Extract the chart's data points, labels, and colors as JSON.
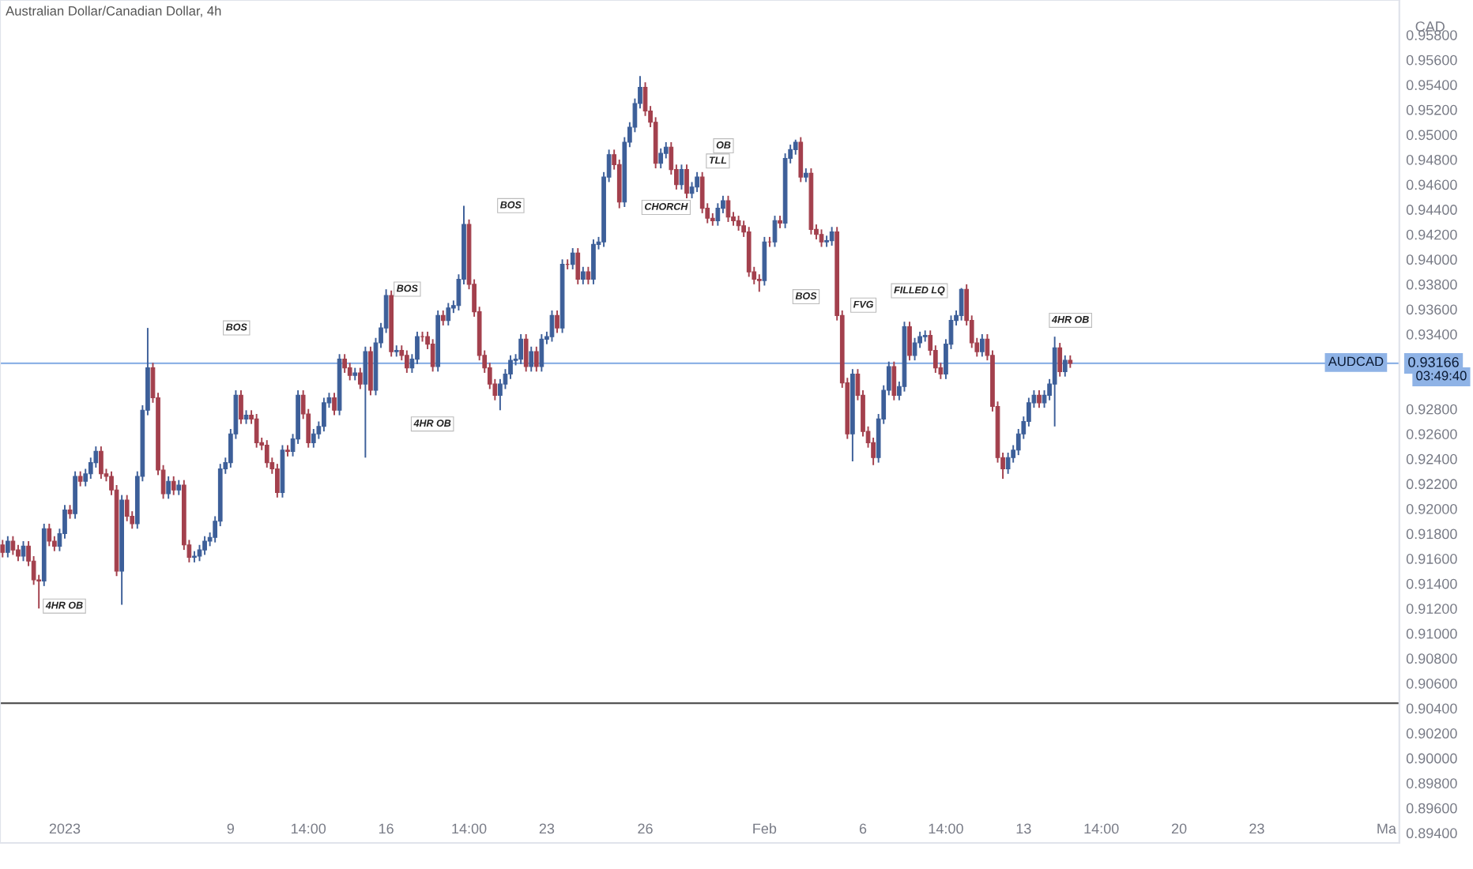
{
  "chart_data": {
    "type": "candlestick",
    "title": "Australian Dollar/Canadian Dollar, 4h",
    "ylabel": "CAD",
    "categories": [
      null,
      null,
      null,
      null,
      null,
      null,
      null,
      null,
      null,
      null,
      null,
      null,
      "2023",
      null,
      null,
      null,
      null,
      null,
      null,
      null,
      null,
      null,
      null,
      null,
      null,
      null,
      null,
      null,
      null,
      null,
      null,
      null,
      null,
      null,
      null,
      null,
      null,
      null,
      null,
      null,
      null,
      null,
      null,
      null,
      "9",
      null,
      null,
      null,
      null,
      null,
      null,
      null,
      null,
      null,
      null,
      null,
      null,
      null,
      null,
      "14:00",
      null,
      null,
      null,
      null,
      null,
      null,
      null,
      null,
      null,
      null,
      null,
      null,
      null,
      null,
      "16",
      null,
      null,
      null,
      null,
      null,
      null,
      null,
      null,
      null,
      null,
      null,
      null,
      null,
      null,
      null,
      "14:00",
      null,
      null,
      null,
      null,
      null,
      null,
      null,
      null,
      null,
      null,
      null,
      null,
      null,
      null,
      "23",
      null,
      null,
      null,
      null,
      null,
      null,
      null,
      null,
      null,
      null,
      null,
      null,
      null,
      null,
      null,
      null,
      null,
      null,
      "26",
      null,
      null,
      null,
      null,
      null,
      null,
      null,
      null,
      null,
      null,
      null,
      null,
      null,
      null,
      null,
      null,
      null,
      null,
      null,
      null,
      null,
      null,
      "Feb",
      null,
      null,
      null,
      null,
      null,
      null,
      null,
      null,
      null,
      null,
      null,
      null,
      null,
      null,
      null,
      null,
      null,
      null,
      "6",
      null,
      null,
      null,
      null,
      null,
      null,
      null,
      null,
      null,
      null,
      null,
      null,
      null,
      null,
      null,
      "14:00",
      null,
      null,
      null,
      null,
      null,
      null,
      null,
      null,
      null,
      null,
      null,
      null,
      null,
      null,
      "13",
      null,
      null,
      null,
      null,
      null,
      null,
      null,
      null,
      null,
      null,
      null,
      null,
      null,
      null,
      "14:00",
      null,
      null,
      null,
      null,
      null,
      null,
      null,
      null,
      null,
      null,
      null,
      null,
      null,
      null,
      "20",
      null,
      null,
      null,
      null,
      null,
      null,
      null,
      null,
      null,
      null,
      null,
      null,
      null,
      null,
      "23",
      null,
      null,
      null,
      null,
      null,
      null,
      null,
      null,
      null,
      null,
      null,
      null,
      null,
      null,
      null,
      null,
      null,
      null,
      null,
      null,
      null,
      null,
      null,
      null,
      "Ma",
      null,
      null
    ],
    "ohlc": [
      [
        0.9171,
        0.9175,
        0.9161,
        0.9165
      ],
      [
        0.9165,
        0.9178,
        0.9161,
        0.9174
      ],
      [
        0.9174,
        0.9178,
        0.9163,
        0.9167
      ],
      [
        0.9167,
        0.9171,
        0.9158,
        0.9162
      ],
      [
        0.9162,
        0.9174,
        0.9158,
        0.917
      ],
      [
        0.917,
        0.9174,
        0.9154,
        0.9158
      ],
      [
        0.9158,
        0.9162,
        0.9139,
        0.9143
      ],
      [
        0.9143,
        0.9147,
        0.912,
        0.9142
      ],
      [
        0.9142,
        0.9188,
        0.9138,
        0.9184
      ],
      [
        0.9184,
        0.9188,
        0.917,
        0.9174
      ],
      [
        0.9174,
        0.9178,
        0.9166,
        0.917
      ],
      [
        0.917,
        0.9184,
        0.9166,
        0.918
      ],
      [
        0.918,
        0.9203,
        0.9176,
        0.9199
      ],
      [
        0.9199,
        0.9203,
        0.9192,
        0.9196
      ],
      [
        0.9196,
        0.923,
        0.9192,
        0.9226
      ],
      [
        0.9226,
        0.923,
        0.9218,
        0.9222
      ],
      [
        0.9222,
        0.9232,
        0.9218,
        0.9228
      ],
      [
        0.9228,
        0.9241,
        0.9224,
        0.9237
      ],
      [
        0.9237,
        0.925,
        0.9233,
        0.9246
      ],
      [
        0.9246,
        0.925,
        0.9224,
        0.9228
      ],
      [
        0.9228,
        0.9232,
        0.9222,
        0.9226
      ],
      [
        0.9226,
        0.923,
        0.9211,
        0.9215
      ],
      [
        0.9215,
        0.9219,
        0.9146,
        0.915
      ],
      [
        0.915,
        0.9211,
        0.9123,
        0.9207
      ],
      [
        0.9207,
        0.9211,
        0.919,
        0.9194
      ],
      [
        0.9194,
        0.9198,
        0.9184,
        0.9188
      ],
      [
        0.9188,
        0.923,
        0.9184,
        0.9226
      ],
      [
        0.9226,
        0.9283,
        0.9222,
        0.9279
      ],
      [
        0.9279,
        0.9345,
        0.9275,
        0.9313
      ],
      [
        0.9313,
        0.9317,
        0.9285,
        0.9289
      ],
      [
        0.9289,
        0.9293,
        0.9227,
        0.9231
      ],
      [
        0.9231,
        0.9235,
        0.9208,
        0.9212
      ],
      [
        0.9212,
        0.9226,
        0.9208,
        0.9222
      ],
      [
        0.9222,
        0.9226,
        0.9211,
        0.9215
      ],
      [
        0.9215,
        0.9223,
        0.9211,
        0.9219
      ],
      [
        0.9219,
        0.9223,
        0.9167,
        0.9171
      ],
      [
        0.9171,
        0.9175,
        0.9157,
        0.9161
      ],
      [
        0.9161,
        0.9166,
        0.9157,
        0.9162
      ],
      [
        0.9162,
        0.9171,
        0.9158,
        0.9167
      ],
      [
        0.9167,
        0.9178,
        0.9163,
        0.9174
      ],
      [
        0.9174,
        0.9181,
        0.917,
        0.9177
      ],
      [
        0.9177,
        0.9194,
        0.9173,
        0.919
      ],
      [
        0.919,
        0.9236,
        0.9186,
        0.9232
      ],
      [
        0.9232,
        0.9241,
        0.9228,
        0.9237
      ],
      [
        0.9237,
        0.9264,
        0.9233,
        0.926
      ],
      [
        0.926,
        0.9295,
        0.9256,
        0.9291
      ],
      [
        0.9291,
        0.9295,
        0.9268,
        0.9272
      ],
      [
        0.9272,
        0.9279,
        0.9268,
        0.9275
      ],
      [
        0.9275,
        0.9279,
        0.9268,
        0.9272
      ],
      [
        0.9272,
        0.9276,
        0.9249,
        0.9253
      ],
      [
        0.9253,
        0.9257,
        0.9247,
        0.9251
      ],
      [
        0.9251,
        0.9255,
        0.9233,
        0.9237
      ],
      [
        0.9237,
        0.9241,
        0.9228,
        0.9232
      ],
      [
        0.9232,
        0.9236,
        0.9209,
        0.9213
      ],
      [
        0.9213,
        0.9251,
        0.9209,
        0.9247
      ],
      [
        0.9247,
        0.9251,
        0.9242,
        0.9246
      ],
      [
        0.9246,
        0.926,
        0.9242,
        0.9256
      ],
      [
        0.9256,
        0.9295,
        0.9252,
        0.9291
      ],
      [
        0.9291,
        0.9295,
        0.9272,
        0.9276
      ],
      [
        0.9276,
        0.928,
        0.9249,
        0.9253
      ],
      [
        0.9253,
        0.9264,
        0.9249,
        0.926
      ],
      [
        0.926,
        0.927,
        0.9256,
        0.9266
      ],
      [
        0.9266,
        0.9289,
        0.9262,
        0.9285
      ],
      [
        0.9285,
        0.9293,
        0.9281,
        0.9289
      ],
      [
        0.9289,
        0.9293,
        0.9275,
        0.9279
      ],
      [
        0.9279,
        0.9324,
        0.9275,
        0.932
      ],
      [
        0.932,
        0.9324,
        0.9309,
        0.9313
      ],
      [
        0.9313,
        0.9317,
        0.9303,
        0.9307
      ],
      [
        0.9307,
        0.9313,
        0.9303,
        0.9309
      ],
      [
        0.9309,
        0.9313,
        0.9296,
        0.93
      ],
      [
        0.93,
        0.933,
        0.9241,
        0.9326
      ],
      [
        0.9326,
        0.933,
        0.9291,
        0.9295
      ],
      [
        0.9295,
        0.9337,
        0.9291,
        0.9333
      ],
      [
        0.9333,
        0.9349,
        0.9329,
        0.9345
      ],
      [
        0.9345,
        0.9376,
        0.9341,
        0.9371
      ],
      [
        0.9371,
        0.9375,
        0.9322,
        0.9326
      ],
      [
        0.9326,
        0.9331,
        0.9322,
        0.9327
      ],
      [
        0.9327,
        0.9331,
        0.9319,
        0.9323
      ],
      [
        0.9323,
        0.9327,
        0.9309,
        0.9313
      ],
      [
        0.9313,
        0.9324,
        0.9309,
        0.932
      ],
      [
        0.932,
        0.9342,
        0.9316,
        0.9338
      ],
      [
        0.9338,
        0.9342,
        0.9334,
        0.9338
      ],
      [
        0.9338,
        0.9342,
        0.9328,
        0.9332
      ],
      [
        0.9332,
        0.9336,
        0.931,
        0.9314
      ],
      [
        0.9314,
        0.9359,
        0.931,
        0.9355
      ],
      [
        0.9355,
        0.9359,
        0.9347,
        0.9351
      ],
      [
        0.9351,
        0.9365,
        0.9347,
        0.9361
      ],
      [
        0.9361,
        0.9367,
        0.9357,
        0.9363
      ],
      [
        0.9363,
        0.9388,
        0.9359,
        0.9384
      ],
      [
        0.9384,
        0.9443,
        0.938,
        0.9428
      ],
      [
        0.9428,
        0.9432,
        0.9376,
        0.938
      ],
      [
        0.938,
        0.9384,
        0.9354,
        0.9358
      ],
      [
        0.9358,
        0.9362,
        0.9319,
        0.9323
      ],
      [
        0.9323,
        0.9327,
        0.9309,
        0.9313
      ],
      [
        0.9313,
        0.9317,
        0.9296,
        0.93
      ],
      [
        0.93,
        0.9304,
        0.9287,
        0.9291
      ],
      [
        0.9291,
        0.9304,
        0.9279,
        0.93
      ],
      [
        0.93,
        0.9312,
        0.9296,
        0.9308
      ],
      [
        0.9308,
        0.9323,
        0.9304,
        0.9319
      ],
      [
        0.9319,
        0.9324,
        0.9315,
        0.932
      ],
      [
        0.932,
        0.934,
        0.9316,
        0.9336
      ],
      [
        0.9336,
        0.934,
        0.931,
        0.9314
      ],
      [
        0.9314,
        0.933,
        0.931,
        0.9326
      ],
      [
        0.9326,
        0.933,
        0.931,
        0.9314
      ],
      [
        0.9314,
        0.934,
        0.931,
        0.9336
      ],
      [
        0.9336,
        0.9342,
        0.9332,
        0.9338
      ],
      [
        0.9338,
        0.9359,
        0.9334,
        0.9355
      ],
      [
        0.9355,
        0.9359,
        0.9341,
        0.9345
      ],
      [
        0.9345,
        0.94,
        0.9341,
        0.9396
      ],
      [
        0.9396,
        0.94,
        0.9392,
        0.9396
      ],
      [
        0.9396,
        0.9409,
        0.9392,
        0.9405
      ],
      [
        0.9405,
        0.9409,
        0.938,
        0.9384
      ],
      [
        0.9384,
        0.9394,
        0.938,
        0.939
      ],
      [
        0.939,
        0.9394,
        0.938,
        0.9384
      ],
      [
        0.9384,
        0.9416,
        0.938,
        0.9412
      ],
      [
        0.9412,
        0.9418,
        0.9408,
        0.9414
      ],
      [
        0.9414,
        0.947,
        0.941,
        0.9466
      ],
      [
        0.9466,
        0.9488,
        0.9462,
        0.9484
      ],
      [
        0.9484,
        0.9488,
        0.9472,
        0.9476
      ],
      [
        0.9476,
        0.948,
        0.9441,
        0.9446
      ],
      [
        0.9446,
        0.9498,
        0.9442,
        0.9494
      ],
      [
        0.9494,
        0.951,
        0.949,
        0.9506
      ],
      [
        0.9506,
        0.9529,
        0.9502,
        0.9525
      ],
      [
        0.9525,
        0.9547,
        0.9521,
        0.9538
      ],
      [
        0.9538,
        0.9542,
        0.9515,
        0.9519
      ],
      [
        0.9519,
        0.9523,
        0.9506,
        0.951
      ],
      [
        0.951,
        0.9514,
        0.9473,
        0.9477
      ],
      [
        0.9477,
        0.9489,
        0.9473,
        0.9485
      ],
      [
        0.9485,
        0.9494,
        0.9481,
        0.949
      ],
      [
        0.949,
        0.9494,
        0.9468,
        0.9472
      ],
      [
        0.9472,
        0.9476,
        0.9456,
        0.946
      ],
      [
        0.946,
        0.9476,
        0.9456,
        0.9472
      ],
      [
        0.9472,
        0.9476,
        0.9449,
        0.9453
      ],
      [
        0.9453,
        0.9462,
        0.9449,
        0.9458
      ],
      [
        0.9458,
        0.947,
        0.9454,
        0.9466
      ],
      [
        0.9466,
        0.947,
        0.9437,
        0.9441
      ],
      [
        0.9441,
        0.9445,
        0.9429,
        0.9433
      ],
      [
        0.9433,
        0.9437,
        0.9427,
        0.9431
      ],
      [
        0.9431,
        0.9445,
        0.9427,
        0.9441
      ],
      [
        0.9441,
        0.9451,
        0.9437,
        0.9447
      ],
      [
        0.9447,
        0.9451,
        0.943,
        0.9434
      ],
      [
        0.9434,
        0.9438,
        0.9427,
        0.9431
      ],
      [
        0.9431,
        0.9435,
        0.9423,
        0.9427
      ],
      [
        0.9427,
        0.9431,
        0.9418,
        0.9422
      ],
      [
        0.9422,
        0.9426,
        0.9386,
        0.939
      ],
      [
        0.939,
        0.9394,
        0.938,
        0.9384
      ],
      [
        0.9384,
        0.9388,
        0.9374,
        0.9383
      ],
      [
        0.9383,
        0.9418,
        0.9379,
        0.9414
      ],
      [
        0.9414,
        0.9418,
        0.941,
        0.9414
      ],
      [
        0.9414,
        0.9435,
        0.941,
        0.9431
      ],
      [
        0.9431,
        0.9435,
        0.9425,
        0.9429
      ],
      [
        0.9429,
        0.9485,
        0.9425,
        0.9481
      ],
      [
        0.9481,
        0.9492,
        0.9477,
        0.9488
      ],
      [
        0.9488,
        0.9496,
        0.9484,
        0.9494
      ],
      [
        0.9494,
        0.9498,
        0.9462,
        0.9466
      ],
      [
        0.9466,
        0.9473,
        0.9462,
        0.9469
      ],
      [
        0.9469,
        0.9473,
        0.942,
        0.9424
      ],
      [
        0.9424,
        0.9428,
        0.9416,
        0.942
      ],
      [
        0.942,
        0.9424,
        0.941,
        0.9414
      ],
      [
        0.9414,
        0.9419,
        0.941,
        0.9415
      ],
      [
        0.9415,
        0.9426,
        0.9411,
        0.9422
      ],
      [
        0.9422,
        0.9426,
        0.9351,
        0.9355
      ],
      [
        0.9355,
        0.9359,
        0.9297,
        0.9301
      ],
      [
        0.9301,
        0.9305,
        0.9256,
        0.926
      ],
      [
        0.926,
        0.9312,
        0.9238,
        0.9308
      ],
      [
        0.9308,
        0.9312,
        0.9287,
        0.9291
      ],
      [
        0.9291,
        0.9295,
        0.9258,
        0.9262
      ],
      [
        0.9262,
        0.9266,
        0.9249,
        0.9253
      ],
      [
        0.9253,
        0.9257,
        0.9235,
        0.9241
      ],
      [
        0.9241,
        0.9276,
        0.9237,
        0.9272
      ],
      [
        0.9272,
        0.9299,
        0.9268,
        0.9295
      ],
      [
        0.9295,
        0.9318,
        0.9291,
        0.9314
      ],
      [
        0.9314,
        0.9318,
        0.9287,
        0.9291
      ],
      [
        0.9291,
        0.9302,
        0.9287,
        0.9298
      ],
      [
        0.9298,
        0.935,
        0.9294,
        0.9346
      ],
      [
        0.9346,
        0.935,
        0.9319,
        0.9323
      ],
      [
        0.9323,
        0.9337,
        0.9319,
        0.9333
      ],
      [
        0.9333,
        0.9342,
        0.9329,
        0.9338
      ],
      [
        0.9338,
        0.9343,
        0.9334,
        0.9339
      ],
      [
        0.9339,
        0.9343,
        0.9323,
        0.9327
      ],
      [
        0.9327,
        0.9331,
        0.9309,
        0.9313
      ],
      [
        0.9313,
        0.9317,
        0.9304,
        0.9308
      ],
      [
        0.9308,
        0.9336,
        0.9304,
        0.9332
      ],
      [
        0.9332,
        0.9355,
        0.9328,
        0.9351
      ],
      [
        0.9351,
        0.9359,
        0.9347,
        0.9355
      ],
      [
        0.9355,
        0.9377,
        0.9351,
        0.9376
      ],
      [
        0.9376,
        0.938,
        0.9347,
        0.9351
      ],
      [
        0.9351,
        0.9355,
        0.9329,
        0.9333
      ],
      [
        0.9333,
        0.9337,
        0.9322,
        0.9326
      ],
      [
        0.9326,
        0.934,
        0.9322,
        0.9336
      ],
      [
        0.9336,
        0.934,
        0.9319,
        0.9323
      ],
      [
        0.9323,
        0.9327,
        0.9278,
        0.9282
      ],
      [
        0.9282,
        0.9286,
        0.9237,
        0.9241
      ],
      [
        0.9241,
        0.9245,
        0.9224,
        0.9232
      ],
      [
        0.9232,
        0.9245,
        0.9228,
        0.9241
      ],
      [
        0.9241,
        0.9251,
        0.9237,
        0.9247
      ],
      [
        0.9247,
        0.9264,
        0.9243,
        0.926
      ],
      [
        0.926,
        0.9274,
        0.9256,
        0.927
      ],
      [
        0.927,
        0.9289,
        0.9266,
        0.9285
      ],
      [
        0.9285,
        0.9295,
        0.9281,
        0.9291
      ],
      [
        0.9291,
        0.9295,
        0.9281,
        0.9285
      ],
      [
        0.9285,
        0.9295,
        0.9281,
        0.9291
      ],
      [
        0.9291,
        0.9304,
        0.9287,
        0.93
      ],
      [
        0.93,
        0.9338,
        0.9266,
        0.9329
      ],
      [
        0.9329,
        0.9333,
        0.9306,
        0.931
      ],
      [
        0.931,
        0.9323,
        0.9306,
        0.9319
      ],
      [
        0.9319,
        0.9323,
        0.9313,
        0.93166
      ],
      null,
      null,
      null,
      null,
      null,
      null,
      null,
      null,
      null,
      null,
      null,
      null,
      null,
      null,
      null,
      null,
      null,
      null,
      null,
      null,
      null,
      null,
      null,
      null,
      null,
      null,
      null,
      null,
      null,
      null,
      null,
      null,
      null,
      null,
      null,
      null,
      null,
      null,
      null,
      null,
      null,
      null,
      null,
      null,
      null,
      null,
      null,
      null,
      null,
      null,
      null,
      null,
      null,
      null,
      null,
      null,
      null,
      null,
      null,
      null,
      null,
      null,
      null
    ],
    "colors": [
      "#a3404d",
      "#3d5f99",
      "#a3404d",
      "#a3404d",
      "#3d5f99",
      "#a3404d",
      "#a3404d",
      "#a3404d",
      "#3d5f99",
      "#a3404d",
      "#a3404d",
      "#3d5f99",
      "#3d5f99",
      "#a3404d",
      "#3d5f99",
      "#a3404d",
      "#3d5f99",
      "#3d5f99",
      "#3d5f99",
      "#a3404d",
      "#a3404d",
      "#a3404d",
      "#a3404d",
      "#3d5f99",
      "#a3404d",
      "#a3404d",
      "#3d5f99",
      "#3d5f99",
      "#3d5f99",
      "#a3404d",
      "#a3404d",
      "#a3404d",
      "#3d5f99",
      "#a3404d",
      "#3d5f99",
      "#a3404d",
      "#a3404d",
      "#3d5f99",
      "#3d5f99",
      "#3d5f99",
      "#3d5f99",
      "#3d5f99",
      "#3d5f99",
      "#3d5f99",
      "#3d5f99",
      "#3d5f99",
      "#a3404d",
      "#3d5f99",
      "#a3404d",
      "#a3404d",
      "#a3404d",
      "#a3404d",
      "#a3404d",
      "#a3404d",
      "#3d5f99",
      "#a3404d",
      "#3d5f99",
      "#3d5f99",
      "#a3404d",
      "#a3404d",
      "#3d5f99",
      "#3d5f99",
      "#3d5f99",
      "#3d5f99",
      "#a3404d",
      "#3d5f99",
      "#a3404d",
      "#a3404d",
      "#3d5f99",
      "#a3404d",
      "#3d5f99",
      "#a3404d",
      "#3d5f99",
      "#3d5f99",
      "#3d5f99",
      "#a3404d",
      "#3d5f99",
      "#a3404d",
      "#a3404d",
      "#3d5f99",
      "#3d5f99",
      "#a3404d",
      "#a3404d",
      "#a3404d",
      "#3d5f99",
      "#a3404d",
      "#3d5f99",
      "#3d5f99",
      "#3d5f99",
      "#3d5f99",
      "#a3404d",
      "#a3404d",
      "#a3404d",
      "#a3404d",
      "#a3404d",
      "#a3404d",
      "#3d5f99",
      "#3d5f99",
      "#3d5f99",
      "#3d5f99",
      "#3d5f99",
      "#a3404d",
      "#3d5f99",
      "#a3404d",
      "#3d5f99",
      "#3d5f99",
      "#3d5f99",
      "#a3404d",
      "#3d5f99",
      "#a3404d",
      "#3d5f99",
      "#a3404d",
      "#3d5f99",
      "#a3404d",
      "#3d5f99",
      "#3d5f99",
      "#3d5f99",
      "#3d5f99",
      "#a3404d",
      "#a3404d",
      "#3d5f99",
      "#3d5f99",
      "#3d5f99",
      "#3d5f99",
      "#a3404d",
      "#a3404d",
      "#a3404d",
      "#3d5f99",
      "#3d5f99",
      "#a3404d",
      "#a3404d",
      "#3d5f99",
      "#a3404d",
      "#3d5f99",
      "#3d5f99",
      "#a3404d",
      "#a3404d",
      "#a3404d",
      "#3d5f99",
      "#3d5f99",
      "#a3404d",
      "#a3404d",
      "#a3404d",
      "#a3404d",
      "#a3404d",
      "#a3404d",
      "#a3404d",
      "#3d5f99",
      "#a3404d",
      "#3d5f99",
      "#a3404d",
      "#3d5f99",
      "#3d5f99",
      "#3d5f99",
      "#a3404d",
      "#3d5f99",
      "#a3404d",
      "#a3404d",
      "#a3404d",
      "#3d5f99",
      "#3d5f99",
      "#a3404d",
      "#a3404d",
      "#a3404d",
      "#3d5f99",
      "#a3404d",
      "#a3404d",
      "#a3404d",
      "#a3404d",
      "#3d5f99",
      "#3d5f99",
      "#3d5f99",
      "#a3404d",
      "#3d5f99",
      "#3d5f99",
      "#a3404d",
      "#3d5f99",
      "#3d5f99",
      "#3d5f99",
      "#a3404d",
      "#a3404d",
      "#a3404d",
      "#3d5f99",
      "#3d5f99",
      "#3d5f99",
      "#3d5f99",
      "#a3404d",
      "#a3404d",
      "#a3404d",
      "#3d5f99",
      "#a3404d",
      "#a3404d",
      "#a3404d",
      "#a3404d",
      "#3d5f99",
      "#3d5f99",
      "#3d5f99",
      "#3d5f99",
      "#3d5f99",
      "#3d5f99",
      "#a3404d",
      "#3d5f99",
      "#3d5f99",
      "#3d5f99",
      "#a3404d",
      "#3d5f99",
      "#a3404d",
      null,
      null,
      null,
      null,
      null,
      null,
      null,
      null,
      null,
      null,
      null,
      null,
      null,
      null,
      null,
      null,
      null,
      null,
      null,
      null,
      null,
      null,
      null,
      null,
      null,
      null,
      null,
      null,
      null,
      null,
      null,
      null,
      null,
      null,
      null,
      null,
      null,
      null,
      null,
      null,
      null,
      null,
      null,
      null,
      null,
      null,
      null,
      null,
      null,
      null,
      null,
      null,
      null,
      null,
      null,
      null,
      null,
      null,
      null,
      null,
      null,
      null,
      null
    ],
    "ylim": [
      0.8932,
      0.9608
    ],
    "yticks": [
      {
        "value": 0.958,
        "label": "0.95800"
      },
      {
        "value": 0.956,
        "label": "0.95600"
      },
      {
        "value": 0.954,
        "label": "0.95400"
      },
      {
        "value": 0.952,
        "label": "0.95200"
      },
      {
        "value": 0.95,
        "label": "0.95000"
      },
      {
        "value": 0.948,
        "label": "0.94800"
      },
      {
        "value": 0.946,
        "label": "0.94600"
      },
      {
        "value": 0.944,
        "label": "0.94400"
      },
      {
        "value": 0.942,
        "label": "0.94200"
      },
      {
        "value": 0.94,
        "label": "0.94000"
      },
      {
        "value": 0.938,
        "label": "0.93800"
      },
      {
        "value": 0.936,
        "label": "0.93600"
      },
      {
        "value": 0.934,
        "label": "0.93400"
      },
      {
        "value": 0.928,
        "label": "0.92800"
      },
      {
        "value": 0.926,
        "label": "0.92600"
      },
      {
        "value": 0.924,
        "label": "0.92400"
      },
      {
        "value": 0.922,
        "label": "0.92200"
      },
      {
        "value": 0.92,
        "label": "0.92000"
      },
      {
        "value": 0.918,
        "label": "0.91800"
      },
      {
        "value": 0.916,
        "label": "0.91600"
      },
      {
        "value": 0.914,
        "label": "0.91400"
      },
      {
        "value": 0.912,
        "label": "0.91200"
      },
      {
        "value": 0.91,
        "label": "0.91000"
      },
      {
        "value": 0.908,
        "label": "0.90800"
      },
      {
        "value": 0.906,
        "label": "0.90600"
      },
      {
        "value": 0.904,
        "label": "0.90400"
      },
      {
        "value": 0.902,
        "label": "0.90200"
      },
      {
        "value": 0.9,
        "label": "0.90000"
      },
      {
        "value": 0.898,
        "label": "0.89800"
      },
      {
        "value": 0.896,
        "label": "0.89600"
      },
      {
        "value": 0.894,
        "label": "0.89400"
      }
    ],
    "ref_lines": [
      {
        "axis": "y",
        "value": 0.93166,
        "label": "0.93166",
        "color": "#8fb3e6"
      },
      {
        "axis": "y",
        "value": 0.9044,
        "color": "#555555"
      }
    ],
    "annotations": [
      "4HR OB",
      "BOS",
      "BOS",
      "4HR OB",
      "BOS",
      "CHORCH",
      "OB",
      "TLL",
      "BOS",
      "FVG",
      "FILLED LQ",
      "4HR OB",
      "AUDCAD",
      "03:49:40"
    ]
  }
}
